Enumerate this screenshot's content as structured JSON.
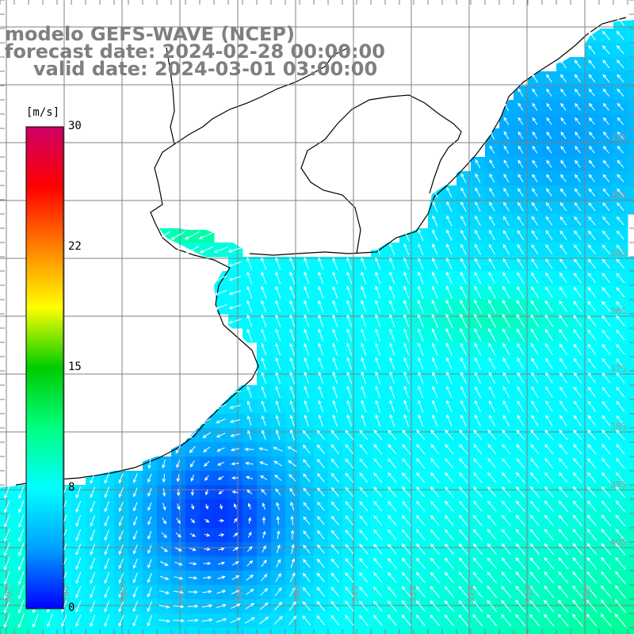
{
  "title": {
    "line1": "modelo GEFS-WAVE (NCEP)",
    "line2": "forecast date: 2024-02-28 00:00:00",
    "line3": "valid date: 2024-03-01 03:00:00"
  },
  "colorbar": {
    "unit": "[m/s]",
    "min": 0,
    "max": 30,
    "ticks": [
      {
        "label": "30",
        "value": 30
      },
      {
        "label": "22",
        "value": 22.5
      },
      {
        "label": "15",
        "value": 15
      },
      {
        "label": "8",
        "value": 7.5
      },
      {
        "label": "0",
        "value": 0
      }
    ],
    "colors": [
      "#0000ff",
      "#00a0ff",
      "#00ffff",
      "#00ff80",
      "#00cc00",
      "#ffff00",
      "#ff8000",
      "#ff0000",
      "#cc0066"
    ]
  },
  "grid_labels": {
    "latitude": [
      "335",
      "345",
      "355",
      "365",
      "375",
      "385",
      "395",
      "405"
    ],
    "longitude": [
      "609",
      "599",
      "589",
      "579",
      "569",
      "559",
      "549",
      "539",
      "529",
      "519",
      "509"
    ]
  },
  "colors": {
    "land": "#ffffff",
    "coastline": "#000000",
    "gridline": "#808080",
    "arrow": "#ffffff"
  }
}
